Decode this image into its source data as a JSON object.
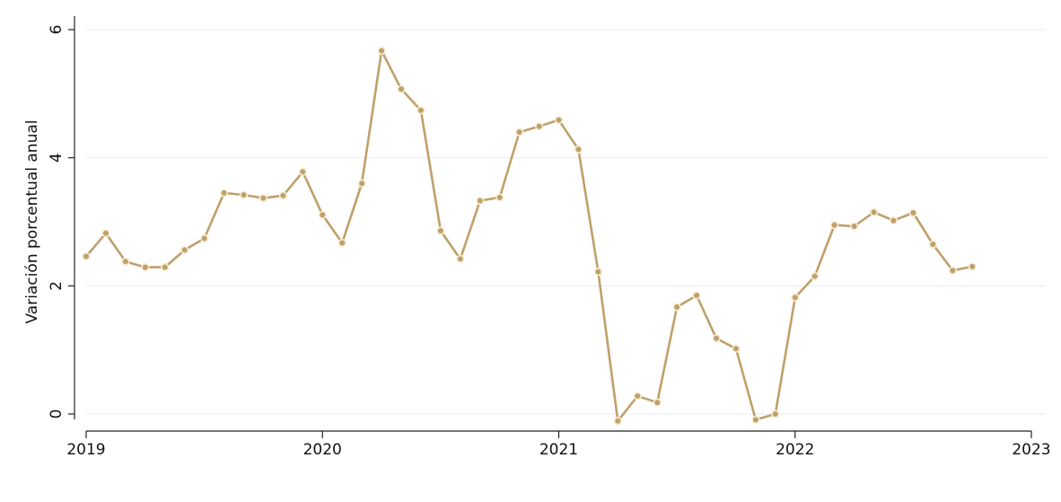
{
  "chart_data": {
    "type": "line",
    "title": "",
    "xlabel": "",
    "ylabel": "Variación porcentual anual",
    "xlim": [
      2019,
      2023
    ],
    "ylim": [
      0,
      6
    ],
    "xticks": [
      2019,
      2020,
      2021,
      2022,
      2023
    ],
    "yticks": [
      0,
      2,
      4,
      6
    ],
    "xtick_labels": [
      "2019",
      "2020",
      "2021",
      "2022",
      "2023"
    ],
    "ytick_labels": [
      "0",
      "2",
      "4",
      "6"
    ],
    "grid": "horizontal",
    "series": [
      {
        "color": "#c0a06a",
        "x": [
          "2019-01",
          "2019-02",
          "2019-03",
          "2019-04",
          "2019-05",
          "2019-06",
          "2019-07",
          "2019-08",
          "2019-09",
          "2019-10",
          "2019-11",
          "2019-12",
          "2020-01",
          "2020-02",
          "2020-03",
          "2020-04",
          "2020-05",
          "2020-06",
          "2020-07",
          "2020-08",
          "2020-09",
          "2020-10",
          "2020-11",
          "2020-12",
          "2021-01",
          "2021-02",
          "2021-03",
          "2021-04",
          "2021-05",
          "2021-06",
          "2021-07",
          "2021-08",
          "2021-09",
          "2021-10",
          "2021-11",
          "2021-12",
          "2022-01",
          "2022-02",
          "2022-03",
          "2022-04",
          "2022-05",
          "2022-06",
          "2022-07",
          "2022-08",
          "2022-09",
          "2022-10"
        ],
        "values": [
          2.46,
          2.82,
          2.38,
          2.29,
          2.29,
          2.56,
          2.74,
          3.45,
          3.42,
          3.37,
          3.41,
          3.78,
          3.11,
          2.67,
          3.6,
          5.67,
          5.07,
          4.74,
          2.86,
          2.42,
          3.33,
          3.38,
          4.4,
          4.49,
          4.59,
          4.13,
          2.22,
          -0.11,
          0.28,
          0.18,
          1.67,
          1.85,
          1.18,
          1.02,
          -0.09,
          0.0,
          1.82,
          2.15,
          2.95,
          2.93,
          3.15,
          3.02,
          3.14,
          2.65,
          2.24,
          2.3
        ]
      }
    ]
  }
}
